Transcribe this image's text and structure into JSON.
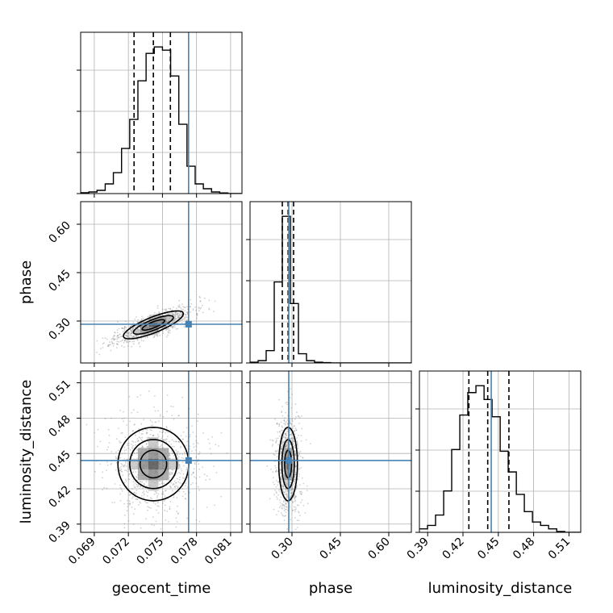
{
  "colors": {
    "truth": "#4682b4",
    "line": "#000000",
    "grid": "#b0b0b0",
    "scatter": "#7a7a7a"
  },
  "chart_data": {
    "type": "corner",
    "title": "",
    "parameters": [
      "geocent_time",
      "phase",
      "luminosity_distance"
    ],
    "truth": {
      "geocent_time": 0.0773,
      "phase": 0.29,
      "luminosity_distance": 0.444
    },
    "quantiles": {
      "geocent_time": [
        0.0725,
        0.0742,
        0.0757
      ],
      "phase": [
        0.27,
        0.288,
        0.305
      ],
      "luminosity_distance": [
        0.425,
        0.441,
        0.459
      ]
    },
    "ranges": {
      "geocent_time": [
        0.0678,
        0.082
      ],
      "phase": [
        0.17,
        0.67
      ],
      "luminosity_distance": [
        0.383,
        0.52
      ]
    },
    "ticks": {
      "geocent_time": {
        "values": [
          0.069,
          0.072,
          0.075,
          0.078,
          0.081
        ],
        "labels": [
          "0.069",
          "0.072",
          "0.075",
          "0.078",
          "0.081"
        ]
      },
      "phase": {
        "values": [
          0.3,
          0.45,
          0.6
        ],
        "labels": [
          "0.30",
          "0.45",
          "0.60"
        ]
      },
      "luminosity_distance": {
        "values": [
          0.39,
          0.42,
          0.45,
          0.48,
          0.51
        ],
        "labels": [
          "0.39",
          "0.42",
          "0.45",
          "0.48",
          "0.51"
        ]
      }
    },
    "histograms": {
      "geocent_time": {
        "edges": [
          0.0678,
          0.06852,
          0.06924,
          0.06996,
          0.07068,
          0.0714,
          0.07212,
          0.07284,
          0.07356,
          0.07428,
          0.075,
          0.07572,
          0.07644,
          0.07716,
          0.07788,
          0.0786,
          0.07932,
          0.08004,
          0.08076,
          0.08148,
          0.0822
        ],
        "counts": [
          0.5,
          1,
          2,
          6,
          13,
          28,
          46,
          70,
          87,
          91,
          89,
          73,
          43,
          17,
          6,
          3,
          1,
          0.4,
          0,
          0
        ]
      },
      "phase": {
        "edges": [
          0.17,
          0.195,
          0.22,
          0.245,
          0.27,
          0.295,
          0.32,
          0.345,
          0.37,
          0.395,
          0.42,
          0.445,
          0.47,
          0.495,
          0.52,
          0.545,
          0.57,
          0.595,
          0.62,
          0.645,
          0.67
        ],
        "counts": [
          1,
          3,
          16,
          105,
          190,
          77,
          12,
          3,
          1,
          0.5,
          0,
          0,
          0,
          0,
          0,
          0,
          0,
          0,
          0,
          0
        ]
      },
      "luminosity_distance": {
        "edges": [
          0.383,
          0.3899,
          0.3967,
          0.4036,
          0.4104,
          0.4173,
          0.4241,
          0.431,
          0.4379,
          0.4447,
          0.4516,
          0.4584,
          0.4653,
          0.4721,
          0.479,
          0.4859,
          0.4927,
          0.4996,
          0.5064,
          0.5133,
          0.52
        ],
        "counts": [
          2,
          4,
          10,
          24,
          48,
          68,
          81,
          85,
          77,
          67,
          47,
          35,
          22,
          12,
          6,
          4,
          2,
          0.5,
          0,
          0
        ]
      }
    },
    "contour_2d": [
      {
        "x": "geocent_time",
        "y": "phase",
        "center": [
          0.0742,
          0.288
        ],
        "sigma_x": 0.0011,
        "sigma_y": 0.018,
        "rho": 0.8
      },
      {
        "x": "geocent_time",
        "y": "luminosity_distance",
        "center": [
          0.0742,
          0.441
        ],
        "sigma_x": 0.0013,
        "sigma_y": 0.013,
        "rho": 0.0
      },
      {
        "x": "phase",
        "y": "luminosity_distance",
        "center": [
          0.288,
          0.441
        ],
        "sigma_x": 0.012,
        "sigma_y": 0.013,
        "rho": 0.0
      }
    ],
    "grid": true
  }
}
